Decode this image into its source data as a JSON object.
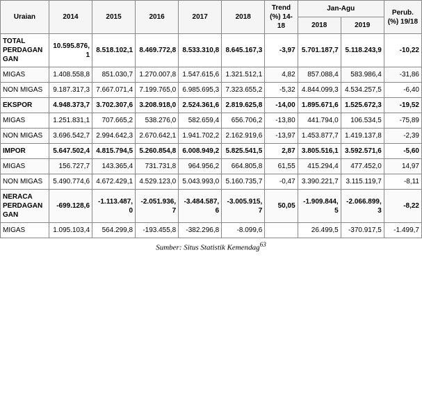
{
  "headers": {
    "uraian": "Uraian",
    "y2014": "2014",
    "y2015": "2015",
    "y2016": "2016",
    "y2017": "2017",
    "y2018": "2018",
    "trend": "Trend (%) 14-18",
    "janagu": "Jan-Agu",
    "ja2018": "2018",
    "ja2019": "2019",
    "perub": "Perub. (%) 19/18"
  },
  "rows": [
    {
      "bold": true,
      "alt": false,
      "label": "TOTAL PERDAGANGAN",
      "c": [
        "10.595.876,1",
        "8.518.102,1",
        "8.469.772,8",
        "8.533.310,8",
        "8.645.167,3",
        "-3,97",
        "5.701.187,7",
        "5.118.243,9",
        "-10,22"
      ]
    },
    {
      "bold": false,
      "alt": true,
      "label": "MIGAS",
      "c": [
        "1.408.558,8",
        "851.030,7",
        "1.270.007,8",
        "1.547.615,6",
        "1.321.512,1",
        "4,82",
        "857.088,4",
        "583.986,4",
        "-31,86"
      ]
    },
    {
      "bold": false,
      "alt": false,
      "label": "NON MIGAS",
      "c": [
        "9.187.317,3",
        "7.667.071,4",
        "7.199.765,0",
        "6.985.695,3",
        "7.323.655,2",
        "-5,32",
        "4.844.099,3",
        "4.534.257,5",
        "-6,40"
      ]
    },
    {
      "bold": true,
      "alt": true,
      "label": "EKSPOR",
      "c": [
        "4.948.373,7",
        "3.702.307,6",
        "3.208.918,0",
        "2.524.361,6",
        "2.819.625,8",
        "-14,00",
        "1.895.671,6",
        "1.525.672,3",
        "-19,52"
      ]
    },
    {
      "bold": false,
      "alt": false,
      "label": "MIGAS",
      "c": [
        "1.251.831,1",
        "707.665,2",
        "538.276,0",
        "582.659,4",
        "656.706,2",
        "-13,80",
        "441.794,0",
        "106.534,5",
        "-75,89"
      ]
    },
    {
      "bold": false,
      "alt": true,
      "label": "NON MIGAS",
      "c": [
        "3.696.542,7",
        "2.994.642,3",
        "2.670.642,1",
        "1.941.702,2",
        "2.162.919,6",
        "-13,97",
        "1.453.877,7",
        "1.419.137,8",
        "-2,39"
      ]
    },
    {
      "bold": true,
      "alt": false,
      "label": "IMPOR",
      "c": [
        "5.647.502,4",
        "4.815.794,5",
        "5.260.854,8",
        "6.008.949,2",
        "5.825.541,5",
        "2,87",
        "3.805.516,1",
        "3.592.571,6",
        "-5,60"
      ]
    },
    {
      "bold": false,
      "alt": true,
      "label": "MIGAS",
      "c": [
        "156.727,7",
        "143.365,4",
        "731.731,8",
        "964.956,2",
        "664.805,8",
        "61,55",
        "415.294,4",
        "477.452,0",
        "14,97"
      ]
    },
    {
      "bold": false,
      "alt": false,
      "label": "NON MIGAS",
      "c": [
        "5.490.774,6",
        "4.672.429,1",
        "4.529.123,0",
        "5.043.993,0",
        "5.160.735,7",
        "-0,47",
        "3.390.221,7",
        "3.115.119,7",
        "-8,11"
      ]
    },
    {
      "bold": true,
      "alt": true,
      "label": "NERACA PERDAGANGAN",
      "c": [
        "-699.128,6",
        "-1.113.487,0",
        "-2.051.936,7",
        "-3.484.587,6",
        "-3.005.915,7",
        "50,05",
        "-1.909.844,5",
        "-2.066.899,3",
        "-8,22"
      ]
    },
    {
      "bold": false,
      "alt": false,
      "label": "MIGAS",
      "c": [
        "1.095.103,4",
        "564.299,8",
        "-193.455,8",
        "-382.296,8",
        "-8.099,6",
        "",
        "26.499,5",
        "-370.917,5",
        "-1.499,7"
      ]
    }
  ],
  "caption": "Sumber: Situs Statistik Kemendag",
  "caption_sup": "63"
}
